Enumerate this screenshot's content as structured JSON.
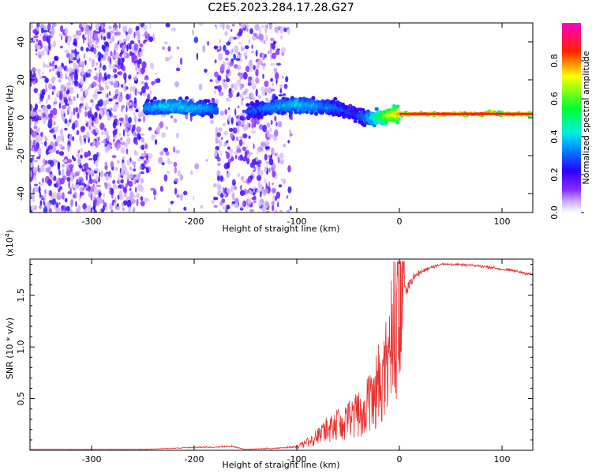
{
  "title": "C2E5.2023.284.17.28.G27",
  "chart_data": [
    {
      "type": "heatmap",
      "xlabel": "Height of straight line (km)",
      "ylabel": "Frequency (Hz)",
      "xlim": [
        -360,
        130
      ],
      "ylim": [
        -50,
        50
      ],
      "xticks": [
        -300,
        -200,
        -100,
        0,
        100
      ],
      "yticks": [
        -40,
        -20,
        0,
        20,
        40
      ],
      "colorbar": {
        "label": "Normalized spectral amplitude",
        "range": [
          0.0,
          1.0
        ],
        "ticks": [
          0.0,
          0.2,
          0.4,
          0.6,
          0.8
        ]
      },
      "colors": [
        "#ffffff",
        "#b98cff",
        "#7a1cff",
        "#3300ff",
        "#00e0ff",
        "#00ff40",
        "#ffff00",
        "#ff0000",
        "#ff00c8"
      ],
      "signal_track": {
        "x": [
          -245,
          -230,
          -215,
          -200,
          -185,
          -175,
          -165,
          -140,
          -120,
          -100,
          -80,
          -60,
          -45,
          -35,
          -25,
          -10,
          0,
          20,
          60,
          80,
          90,
          100,
          130
        ],
        "freq": [
          5,
          6,
          6,
          5,
          5,
          4,
          3,
          4,
          6,
          7,
          6,
          5,
          2,
          0,
          0,
          1,
          2,
          2,
          2,
          2,
          3,
          2,
          2
        ],
        "amp": [
          0.35,
          0.4,
          0.4,
          0.38,
          0.35,
          0.3,
          0.2,
          0.3,
          0.35,
          0.4,
          0.35,
          0.3,
          0.25,
          0.3,
          0.45,
          0.7,
          0.8,
          0.85,
          0.85,
          0.9,
          0.8,
          0.85,
          0.85
        ]
      }
    },
    {
      "type": "line",
      "xlabel": "Height of straight line (km)",
      "ylabel": "SNR (10 * v/v)",
      "y_multiplier": "(x10",
      "y_multiplier_exp": "4",
      "xlim": [
        -360,
        130
      ],
      "ylim": [
        0,
        1.85
      ],
      "xticks": [
        -300,
        -200,
        -100,
        0,
        100
      ],
      "yticks": [
        0.5,
        1.0,
        1.5
      ],
      "series": [
        {
          "color": "#e8312f",
          "x": [
            -360,
            -300,
            -250,
            -220,
            -200,
            -180,
            -165,
            -150,
            -120,
            -105,
            -95,
            -85,
            -75,
            -60,
            -45,
            -35,
            -25,
            -15,
            -10,
            -5,
            0,
            5,
            10,
            15,
            20,
            30,
            40,
            50,
            70,
            90,
            100,
            110,
            120,
            130
          ],
          "y": [
            0.01,
            0.01,
            0.01,
            0.02,
            0.03,
            0.03,
            0.04,
            0.01,
            0.02,
            0.03,
            0.05,
            0.1,
            0.18,
            0.25,
            0.32,
            0.4,
            0.55,
            0.75,
            0.95,
            1.2,
            1.45,
            1.55,
            1.62,
            1.68,
            1.72,
            1.77,
            1.8,
            1.8,
            1.79,
            1.77,
            1.75,
            1.74,
            1.72,
            1.7
          ],
          "noise": [
            0.002,
            0.002,
            0.003,
            0.004,
            0.006,
            0.006,
            0.01,
            0.004,
            0.006,
            0.01,
            0.03,
            0.08,
            0.12,
            0.15,
            0.2,
            0.25,
            0.3,
            0.38,
            0.35,
            0.3,
            0.22,
            0.1,
            0.06,
            0.04,
            0.03,
            0.02,
            0.015,
            0.012,
            0.012,
            0.015,
            0.015,
            0.015,
            0.015,
            0.015
          ]
        }
      ]
    }
  ]
}
